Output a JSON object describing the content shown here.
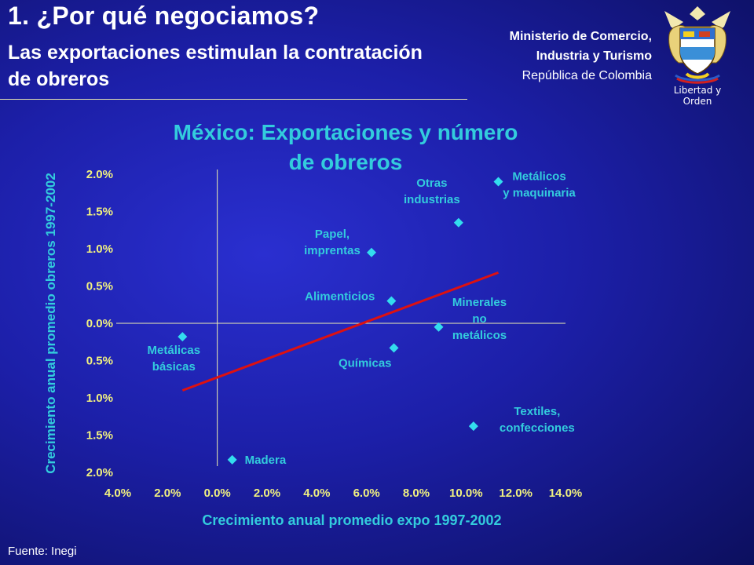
{
  "slide": {
    "title": "1. ¿Por qué negociamos?",
    "subtitle": "Las exportaciones estimulan la contratación de obreros",
    "ministry_line1": "Ministerio de Comercio,",
    "ministry_line2": "Industria y Turismo",
    "ministry_line3": "República de Colombia",
    "seal_motto": "Libertad y Orden",
    "source": "Fuente: Inegi"
  },
  "colors": {
    "background": "#1c1fa8",
    "title_text": "#ffffff",
    "chart_title": "#33ccdd",
    "axis_label": "#33ccdd",
    "tick_label": "#f0f080",
    "point": "#33ddee",
    "point_label": "#33ccdd",
    "trend_line": "#dd1111",
    "axis_line": "#f0f0b0"
  },
  "chart_data": {
    "type": "scatter",
    "title": "México: Exportaciones y número de obreros",
    "title_lines": [
      "México: Exportaciones y número",
      "de obreros"
    ],
    "xlabel": "Crecimiento anual promedio expo 1997-2002",
    "ylabel": "Crecimiento anual promedio obreros 1997-2002",
    "xlim": [
      -4,
      14
    ],
    "ylim": [
      -2,
      2
    ],
    "x_ticks": [
      -4,
      -2,
      0,
      2,
      4,
      6,
      8,
      10,
      12,
      14
    ],
    "x_tick_labels": [
      "4.0%",
      "2.0%",
      "0.0%",
      "2.0%",
      "4.0%",
      "6.0%",
      "8.0%",
      "10.0%",
      "12.0%",
      "14.0%"
    ],
    "y_ticks": [
      2,
      1.5,
      1,
      0.5,
      0,
      -0.5,
      -1,
      -1.5,
      -2
    ],
    "y_tick_labels": [
      "2.0%",
      "1.5%",
      "1.0%",
      "0.5%",
      "0.0%",
      "0.5%",
      "1.0%",
      "1.5%",
      "2.0%"
    ],
    "grid": false,
    "legend": "none",
    "points": [
      {
        "label_lines": [
          "Metálicos",
          "y maquinaria"
        ],
        "x": 11.3,
        "y": 1.9
      },
      {
        "label_lines": [
          "Otras",
          "industrias"
        ],
        "x": 9.7,
        "y": 1.35
      },
      {
        "label_lines": [
          "Papel,",
          "imprentas"
        ],
        "x": 6.2,
        "y": 0.95
      },
      {
        "label_lines": [
          "Alimenticios"
        ],
        "x": 7.0,
        "y": 0.3
      },
      {
        "label_lines": [
          "Minerales",
          "no",
          "metálicos"
        ],
        "x": 8.9,
        "y": -0.05
      },
      {
        "label_lines": [
          "Químicas"
        ],
        "x": 7.1,
        "y": -0.33
      },
      {
        "label_lines": [
          "Metálicas",
          "básicas"
        ],
        "x": -1.4,
        "y": -0.18
      },
      {
        "label_lines": [
          "Textiles,",
          "confecciones"
        ],
        "x": 10.3,
        "y": -1.38
      },
      {
        "label_lines": [
          "Madera"
        ],
        "x": 0.6,
        "y": -1.83
      }
    ],
    "trend_line": {
      "x": [
        -1.4,
        11.3
      ],
      "y": [
        -0.9,
        0.68
      ]
    }
  }
}
